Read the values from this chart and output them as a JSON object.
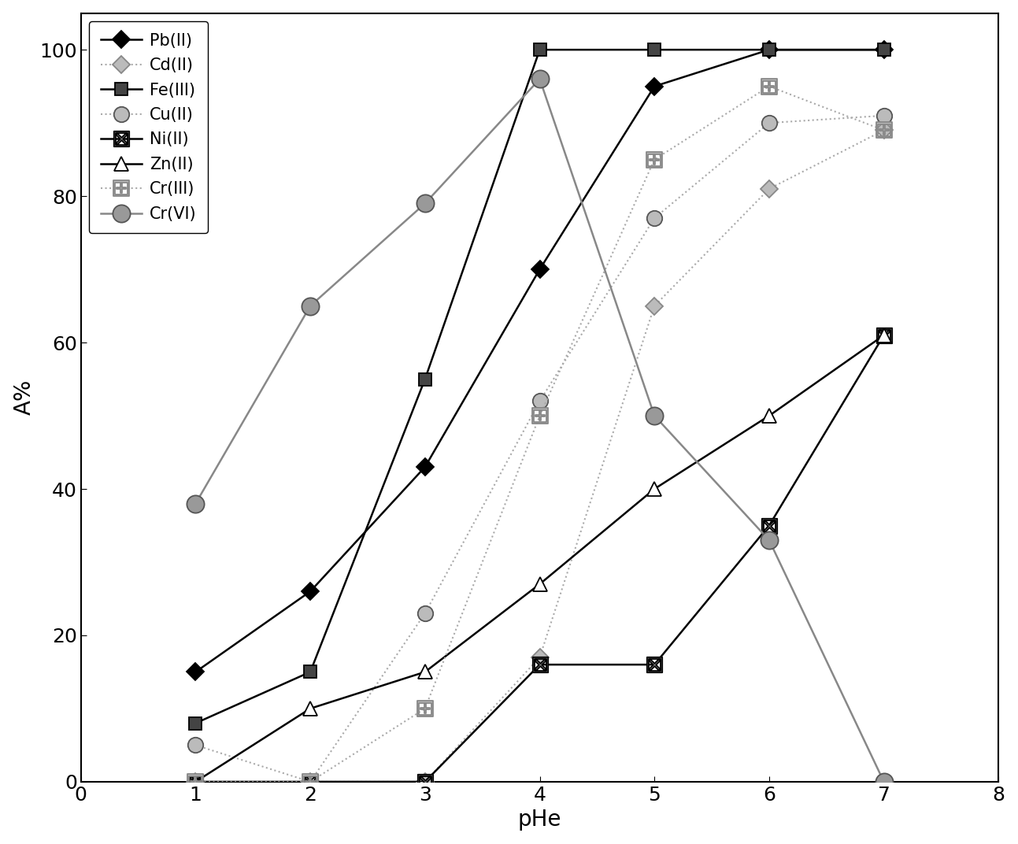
{
  "series_order": [
    "Pb(II)",
    "Cd(II)",
    "Fe(III)",
    "Cu(II)",
    "Ni(II)",
    "Zn(II)",
    "Cr(III)",
    "Cr(VI)"
  ],
  "series": {
    "Pb(II)": {
      "x": [
        1,
        2,
        3,
        4,
        5,
        6,
        7
      ],
      "y": [
        15,
        26,
        43,
        70,
        95,
        100,
        100
      ],
      "color": "#000000",
      "linestyle": "-",
      "marker": "D",
      "markersize": 11,
      "markerfacecolor": "#000000",
      "markeredgecolor": "#000000",
      "linewidth": 1.8
    },
    "Cd(II)": {
      "x": [
        1,
        2,
        3,
        4,
        5,
        6,
        7
      ],
      "y": [
        0,
        0,
        0,
        17,
        65,
        81,
        89
      ],
      "color": "#aaaaaa",
      "linestyle": ":",
      "marker": "D",
      "markersize": 11,
      "markerfacecolor": "#bbbbbb",
      "markeredgecolor": "#888888",
      "linewidth": 1.5
    },
    "Fe(III)": {
      "x": [
        1,
        2,
        3,
        4,
        5,
        6,
        7
      ],
      "y": [
        8,
        15,
        55,
        100,
        100,
        100,
        100
      ],
      "color": "#000000",
      "linestyle": "-",
      "marker": "s",
      "markersize": 12,
      "markerfacecolor": "#444444",
      "markeredgecolor": "#000000",
      "linewidth": 1.8
    },
    "Cu(II)": {
      "x": [
        1,
        2,
        3,
        4,
        5,
        6,
        7
      ],
      "y": [
        5,
        0,
        23,
        52,
        77,
        90,
        91
      ],
      "color": "#aaaaaa",
      "linestyle": ":",
      "marker": "o",
      "markersize": 14,
      "markerfacecolor": "#bbbbbb",
      "markeredgecolor": "#555555",
      "linewidth": 1.5
    },
    "Ni(II)": {
      "x": [
        1,
        2,
        3,
        4,
        5,
        6,
        7
      ],
      "y": [
        0,
        0,
        0,
        16,
        16,
        35,
        61
      ],
      "color": "#000000",
      "linestyle": "-",
      "marker": "$\\boxtimes$",
      "markersize": 14,
      "markerfacecolor": "#888888",
      "markeredgecolor": "#000000",
      "linewidth": 1.8
    },
    "Zn(II)": {
      "x": [
        1,
        2,
        3,
        4,
        5,
        6,
        7
      ],
      "y": [
        0,
        10,
        15,
        27,
        40,
        50,
        61
      ],
      "color": "#000000",
      "linestyle": "-",
      "marker": "^",
      "markersize": 13,
      "markerfacecolor": "white",
      "markeredgecolor": "#000000",
      "linewidth": 1.8
    },
    "Cr(III)": {
      "x": [
        1,
        2,
        3,
        4,
        5,
        6,
        7
      ],
      "y": [
        0,
        0,
        10,
        50,
        85,
        95,
        89
      ],
      "color": "#aaaaaa",
      "linestyle": ":",
      "marker": "$\\boxplus$",
      "markersize": 14,
      "markerfacecolor": "#bbbbbb",
      "markeredgecolor": "#888888",
      "linewidth": 1.5
    },
    "Cr(VI)": {
      "x": [
        1,
        2,
        3,
        4,
        5,
        6,
        7
      ],
      "y": [
        38,
        65,
        79,
        96,
        50,
        33,
        0
      ],
      "color": "#888888",
      "linestyle": "-",
      "marker": "o",
      "markersize": 16,
      "markerfacecolor": "#999999",
      "markeredgecolor": "#555555",
      "linewidth": 1.8
    }
  },
  "xlabel": "pHe",
  "ylabel": "A%",
  "xlim": [
    0.5,
    8
  ],
  "ylim": [
    0,
    105
  ],
  "xticks": [
    0,
    1,
    2,
    3,
    4,
    5,
    6,
    7,
    8
  ],
  "yticks": [
    0,
    20,
    40,
    60,
    80,
    100
  ],
  "axis_fontsize": 20,
  "tick_fontsize": 18,
  "legend_fontsize": 15,
  "background_color": "white"
}
